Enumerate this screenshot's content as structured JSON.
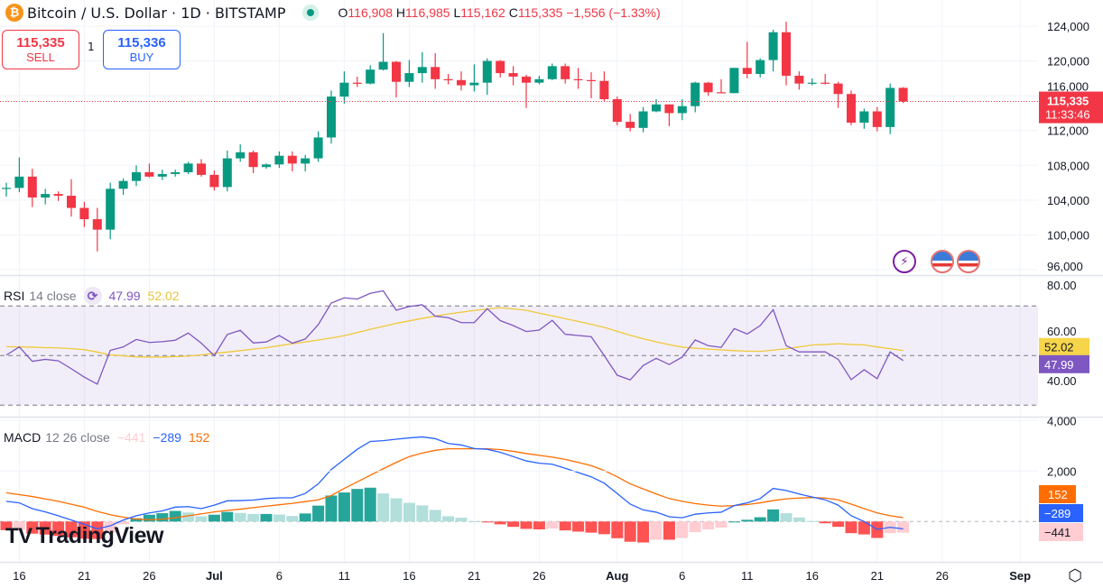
{
  "header": {
    "title": "Bitcoin / U.S. Dollar · 1D · BITSTAMP",
    "coin_icon": "bitcoin-icon",
    "ohlc": {
      "o_label": "O",
      "o": "116,908",
      "h_label": "H",
      "h": "116,985",
      "l_label": "L",
      "l": "115,162",
      "c_label": "C",
      "c": "115,335",
      "change": "−1,556 (−1.33%)"
    }
  },
  "trade": {
    "sell_price": "115,335",
    "sell_label": "SELL",
    "qty": "1",
    "buy_price": "115,336",
    "buy_label": "BUY"
  },
  "price_label": {
    "price": "115,335",
    "countdown": "11:33:46"
  },
  "rsi_legend": {
    "name": "RSI",
    "params": "14 close",
    "value": "47.99",
    "ma": "52.02"
  },
  "macd_legend": {
    "name": "MACD",
    "params": "12 26 close",
    "hist": "−441",
    "macd": "−289",
    "signal": "152"
  },
  "logo": "TradingView",
  "colors": {
    "up": "#089981",
    "down": "#F23645",
    "rsi": "#7E57C2",
    "rsi_ma": "#F0C93A",
    "macd": "#2962FF",
    "signal": "#FF6D00",
    "hist_up_strong": "#26A69A",
    "hist_up_weak": "#B2DFDB",
    "hist_down_strong": "#FF5252",
    "hist_down_weak": "#FFCDD2"
  },
  "chart_data": [
    {
      "type": "candlestick",
      "title": "Bitcoin / U.S. Dollar · 1D · BITSTAMP",
      "ylim": [
        96000,
        124000
      ],
      "y_ticks": [
        "124,000",
        "120,000",
        "116,000",
        "112,000",
        "108,000",
        "104,000",
        "100,000",
        "96,000"
      ],
      "x_ticks": [
        "16",
        "21",
        "26",
        "Jul",
        "6",
        "11",
        "16",
        "21",
        "26",
        "Aug",
        "6",
        "11",
        "16",
        "21",
        "26",
        "Sep"
      ],
      "grid": true,
      "last_price": 115335,
      "candles_columns": [
        "date",
        "open",
        "high",
        "low",
        "close"
      ],
      "candles": [
        [
          "Jun 15",
          105300,
          106000,
          104400,
          105400
        ],
        [
          "Jun 16",
          105400,
          108900,
          104900,
          106700
        ],
        [
          "Jun 17",
          106700,
          107600,
          103200,
          104300
        ],
        [
          "Jun 18",
          104300,
          105300,
          103500,
          104700
        ],
        [
          "Jun 19",
          104700,
          105000,
          103900,
          104500
        ],
        [
          "Jun 20",
          104500,
          106400,
          102100,
          103100
        ],
        [
          "Jun 21",
          103100,
          103800,
          100900,
          101800
        ],
        [
          "Jun 22",
          101800,
          103100,
          98100,
          100600
        ],
        [
          "Jun 23",
          100600,
          106000,
          99500,
          105300
        ],
        [
          "Jun 24",
          105300,
          106500,
          104600,
          106200
        ],
        [
          "Jun 25",
          106200,
          108000,
          105600,
          107200
        ],
        [
          "Jun 26",
          107200,
          108200,
          106600,
          106700
        ],
        [
          "Jun 27",
          106700,
          107500,
          106300,
          107000
        ],
        [
          "Jun 28",
          107000,
          107500,
          106700,
          107200
        ],
        [
          "Jun 29",
          107200,
          108400,
          107000,
          108200
        ],
        [
          "Jun 30",
          108200,
          108700,
          106700,
          106900
        ],
        [
          "Jul 1",
          106900,
          107400,
          105100,
          105500
        ],
        [
          "Jul 2",
          105500,
          109700,
          105000,
          108800
        ],
        [
          "Jul 3",
          108800,
          110400,
          108400,
          109500
        ],
        [
          "Jul 4",
          109500,
          109700,
          107100,
          107800
        ],
        [
          "Jul 5",
          107800,
          108200,
          107600,
          108100
        ],
        [
          "Jul 6",
          108100,
          109600,
          107700,
          109100
        ],
        [
          "Jul 7",
          109100,
          109600,
          107300,
          108200
        ],
        [
          "Jul 8",
          108200,
          109200,
          107300,
          108800
        ],
        [
          "Jul 9",
          108800,
          111900,
          108400,
          111200
        ],
        [
          "Jul 10",
          111200,
          116600,
          110500,
          115900
        ],
        [
          "Jul 11",
          115900,
          118800,
          115100,
          117500
        ],
        [
          "Jul 12",
          117500,
          118200,
          117000,
          117400
        ],
        [
          "Jul 13",
          117400,
          119500,
          117300,
          119000
        ],
        [
          "Jul 14",
          119000,
          123200,
          118900,
          119900
        ],
        [
          "Jul 15",
          119900,
          120000,
          115800,
          117600
        ],
        [
          "Jul 16",
          117600,
          120100,
          117000,
          118600
        ],
        [
          "Jul 17",
          118600,
          121000,
          117500,
          119300
        ],
        [
          "Jul 18",
          119300,
          120900,
          116800,
          117900
        ],
        [
          "Jul 19",
          117900,
          118500,
          117300,
          117800
        ],
        [
          "Jul 20",
          117800,
          118800,
          116600,
          117200
        ],
        [
          "Jul 21",
          117200,
          119600,
          116500,
          117500
        ],
        [
          "Jul 22",
          117500,
          120300,
          116100,
          120000
        ],
        [
          "Jul 23",
          120000,
          120100,
          118100,
          118600
        ],
        [
          "Jul 24",
          118600,
          119400,
          117200,
          118200
        ],
        [
          "Jul 25",
          118200,
          118400,
          114600,
          117500
        ],
        [
          "Jul 26",
          117500,
          118300,
          117300,
          117900
        ],
        [
          "Jul 27",
          117900,
          119700,
          117800,
          119400
        ],
        [
          "Jul 28",
          119400,
          119700,
          117400,
          117900
        ],
        [
          "Jul 29",
          117900,
          119200,
          116800,
          117800
        ],
        [
          "Jul 30",
          117800,
          118700,
          115700,
          117700
        ],
        [
          "Jul 31",
          117700,
          118800,
          115400,
          115600
        ],
        [
          "Aug 1",
          115600,
          115900,
          112600,
          113000
        ],
        [
          "Aug 2",
          113000,
          113900,
          111900,
          112300
        ],
        [
          "Aug 3",
          112300,
          114700,
          111800,
          114200
        ],
        [
          "Aug 4",
          114200,
          115600,
          114100,
          115000
        ],
        [
          "Aug 5",
          115000,
          115000,
          112500,
          114000
        ],
        [
          "Aug 6",
          114000,
          115600,
          113200,
          114800
        ],
        [
          "Aug 7",
          114800,
          117600,
          114100,
          117500
        ],
        [
          "Aug 8",
          117500,
          117600,
          116000,
          116400
        ],
        [
          "Aug 9",
          116400,
          117900,
          116300,
          116300
        ],
        [
          "Aug 10",
          116300,
          119200,
          116300,
          119200
        ],
        [
          "Aug 11",
          119200,
          122200,
          118000,
          118500
        ],
        [
          "Aug 12",
          118500,
          120300,
          118100,
          120100
        ],
        [
          "Aug 13",
          120100,
          123600,
          118800,
          123300
        ],
        [
          "Aug 14",
          123300,
          124500,
          117200,
          118300
        ],
        [
          "Aug 15",
          118300,
          118800,
          116700,
          117400
        ],
        [
          "Aug 16",
          117400,
          118000,
          117200,
          117500
        ],
        [
          "Aug 17",
          117500,
          118500,
          117300,
          117400
        ],
        [
          "Aug 18",
          117400,
          117600,
          114600,
          116200
        ],
        [
          "Aug 19",
          116200,
          116600,
          112600,
          112900
        ],
        [
          "Aug 20",
          112900,
          114500,
          112200,
          114200
        ],
        [
          "Aug 21",
          114200,
          114700,
          111900,
          112400
        ],
        [
          "Aug 22",
          112400,
          117400,
          111600,
          116900
        ],
        [
          "Aug 23",
          116908,
          116985,
          115162,
          115335
        ]
      ]
    },
    {
      "type": "line",
      "title": "RSI 14 close",
      "ylim": [
        20,
        85
      ],
      "y_ticks": [
        "80.00",
        "60.00",
        "40.00"
      ],
      "bands": [
        70,
        50,
        30
      ],
      "series": [
        {
          "name": "RSI",
          "values": [
            50.2,
            53.5,
            47.7,
            48.5,
            47.9,
            44.7,
            41.3,
            38.5,
            52.1,
            53.5,
            56.5,
            55.3,
            55.6,
            56.2,
            59.1,
            55.0,
            50.0,
            58.5,
            60.2,
            55.1,
            55.5,
            58.1,
            55.0,
            56.7,
            62.5,
            71.2,
            73.3,
            72.8,
            75.1,
            76.1,
            68.3,
            69.8,
            70.5,
            65.9,
            65.3,
            63.3,
            63.3,
            68.9,
            64.1,
            62.1,
            59.7,
            60.3,
            64.2,
            58.6,
            58.1,
            57.6,
            50.0,
            42.1,
            40.2,
            46.0,
            48.9,
            46.4,
            49.4,
            56.3,
            54.0,
            53.3,
            60.9,
            58.7,
            62.1,
            68.5,
            54.0,
            51.5,
            51.5,
            51.5,
            48.5,
            40.3,
            44.3,
            40.7,
            51.5,
            47.99
          ]
        },
        {
          "name": "RSI MA",
          "values": [
            53.6,
            53.5,
            53.4,
            53.2,
            53.1,
            52.8,
            52.4,
            51.4,
            50.3,
            49.9,
            49.5,
            49.4,
            49.4,
            49.6,
            49.8,
            50.3,
            50.9,
            51.4,
            52.0,
            52.6,
            53.2,
            54.0,
            54.8,
            55.5,
            56.3,
            57.1,
            58.0,
            59.3,
            60.6,
            61.8,
            63.0,
            64.0,
            65.0,
            65.9,
            66.8,
            67.5,
            68.2,
            68.8,
            69.3,
            68.8,
            68.3,
            67.1,
            66.0,
            64.9,
            63.8,
            62.6,
            61.4,
            59.8,
            58.2,
            56.8,
            55.5,
            54.4,
            53.4,
            53.0,
            52.6,
            52.3,
            52.0,
            51.8,
            51.7,
            52.2,
            52.8,
            53.5,
            54.3,
            54.5,
            54.8,
            54.5,
            54.3,
            53.5,
            52.8,
            52.02
          ]
        }
      ]
    },
    {
      "type": "line",
      "title": "MACD 12 26 close",
      "y_ticks": [
        "4,000",
        "2,000"
      ],
      "series": [
        {
          "name": "MACD",
          "values": [
            800,
            740,
            510,
            380,
            230,
            60,
            -110,
            -290,
            -170,
            60,
            230,
            340,
            420,
            570,
            590,
            510,
            650,
            820,
            830,
            850,
            910,
            940,
            940,
            1110,
            1490,
            2060,
            2460,
            2860,
            3170,
            3200,
            3260,
            3310,
            3350,
            3280,
            3090,
            3030,
            2890,
            2860,
            2740,
            2570,
            2400,
            2310,
            2270,
            2110,
            1940,
            1770,
            1520,
            1110,
            690,
            460,
            370,
            190,
            150,
            290,
            340,
            370,
            630,
            740,
            910,
            1310,
            1230,
            1090,
            970,
            860,
            650,
            230,
            0,
            -310,
            -230,
            -289
          ]
        },
        {
          "name": "Signal",
          "values": [
            1140,
            1065,
            990,
            895,
            800,
            685,
            570,
            400,
            270,
            170,
            100,
            70,
            90,
            150,
            230,
            300,
            380,
            440,
            490,
            550,
            610,
            665,
            720,
            790,
            860,
            1030,
            1310,
            1570,
            1830,
            2090,
            2340,
            2570,
            2710,
            2820,
            2880,
            2880,
            2880,
            2880,
            2850,
            2780,
            2690,
            2620,
            2550,
            2460,
            2340,
            2210,
            2020,
            1770,
            1490,
            1290,
            1090,
            910,
            800,
            710,
            650,
            610,
            630,
            670,
            740,
            830,
            900,
            930,
            950,
            930,
            860,
            690,
            510,
            340,
            230,
            152
          ]
        }
      ]
    }
  ]
}
